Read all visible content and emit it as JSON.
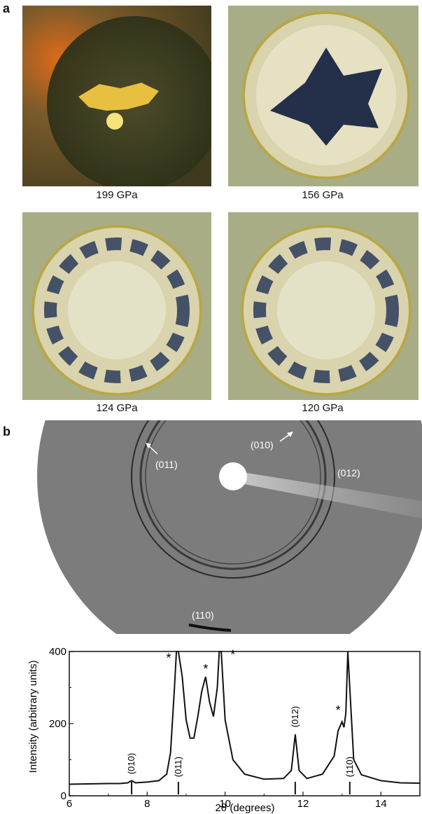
{
  "panel_a": {
    "label": "a",
    "images": [
      {
        "caption": "199 GPa"
      },
      {
        "caption": "156 GPa"
      },
      {
        "caption": "124 GPa"
      },
      {
        "caption": "120 GPa"
      }
    ]
  },
  "panel_b": {
    "label": "b",
    "ring_labels": [
      "(011)",
      "(010)",
      "(012)",
      "(110)"
    ]
  },
  "chart_data": {
    "type": "line",
    "xlabel": "2θ (degrees)",
    "ylabel": "Intensity (arbitrary units)",
    "xlim": [
      6,
      15
    ],
    "ylim": [
      0,
      400
    ],
    "xticks": [
      6,
      8,
      10,
      12,
      14
    ],
    "yticks": [
      0,
      200,
      400
    ],
    "series": [
      {
        "x": [
          6.0,
          6.5,
          7.0,
          7.3,
          7.5,
          7.6,
          7.7,
          8.0,
          8.3,
          8.5,
          8.6,
          8.7,
          8.75,
          8.8,
          8.9,
          9.0,
          9.1,
          9.2,
          9.3,
          9.4,
          9.5,
          9.6,
          9.7,
          9.8,
          9.85,
          9.9,
          10.0,
          10.2,
          10.5,
          11.0,
          11.5,
          11.7,
          11.8,
          11.9,
          12.1,
          12.5,
          12.8,
          12.9,
          13.0,
          13.05,
          13.1,
          13.15,
          13.2,
          13.3,
          13.5,
          14.0,
          14.5,
          15.0
        ],
        "y": [
          32,
          33,
          34,
          34,
          36,
          42,
          36,
          38,
          42,
          60,
          120,
          300,
          400,
          400,
          330,
          210,
          160,
          160,
          220,
          290,
          330,
          260,
          220,
          300,
          400,
          400,
          210,
          100,
          60,
          46,
          48,
          70,
          170,
          70,
          48,
          60,
          110,
          180,
          205,
          190,
          230,
          400,
          300,
          100,
          58,
          42,
          36,
          35
        ]
      }
    ],
    "annotations": [
      {
        "text": "(010)",
        "x": 7.6,
        "y": 48
      },
      {
        "text": "(011)",
        "x": 8.8,
        "y": 40
      },
      {
        "text": "(012)",
        "x": 11.8,
        "y": 178
      },
      {
        "text": "(110)",
        "x": 13.2,
        "y": 40
      },
      {
        "text": "*",
        "x": 8.55,
        "y": 370
      },
      {
        "text": "*",
        "x": 9.5,
        "y": 340
      },
      {
        "text": "*",
        "x": 10.2,
        "y": 380
      },
      {
        "text": "*",
        "x": 12.9,
        "y": 225
      }
    ],
    "tick_marks": [
      7.6,
      8.8,
      11.8,
      13.2
    ]
  }
}
